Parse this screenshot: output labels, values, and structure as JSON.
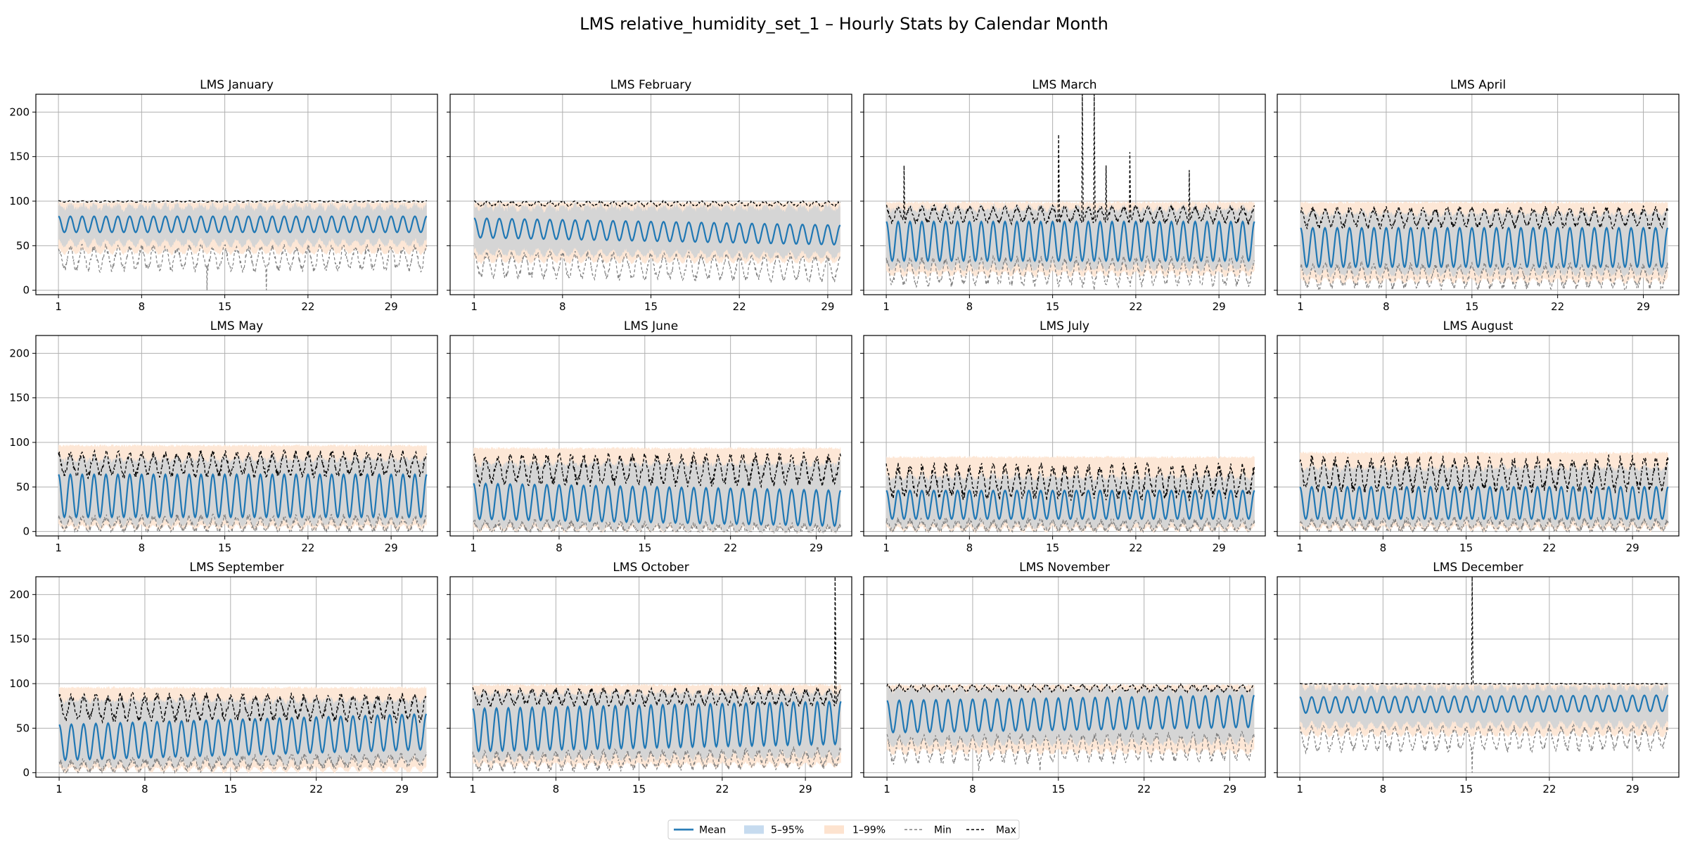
{
  "chart_data": {
    "type": "line",
    "title": "LMS relative_humidity_set_1 – Hourly Stats by Calendar Month",
    "xlabel": "",
    "ylabel": "",
    "ylim": [
      -5,
      220
    ],
    "yticks": [
      0,
      50,
      100,
      150,
      200
    ],
    "xticks": [
      1,
      8,
      15,
      22,
      29
    ],
    "grid": true,
    "legend": {
      "placement": "bottom-center",
      "entries": [
        {
          "label": "Mean",
          "kind": "line",
          "color": "#1f77b4"
        },
        {
          "label": "5–95%",
          "kind": "band",
          "color": "#c6dbef"
        },
        {
          "label": "1–99%",
          "kind": "band",
          "color": "#fde3cf"
        },
        {
          "label": "Min",
          "kind": "dash",
          "color": "#808080"
        },
        {
          "label": "Max",
          "kind": "dash",
          "color": "#000000"
        }
      ]
    },
    "colors": {
      "mean": "#1f77b4",
      "band_5_95": "#d5d5d5",
      "band_1_99": "#fde7d6",
      "min": "#808080",
      "max": "#000000",
      "grid": "#b0b0b0"
    },
    "panels": [
      {
        "title": "LMS January",
        "days": 31,
        "mean": {
          "base": 74,
          "amp": 9,
          "drift": 0
        },
        "p5_95": [
          55,
          97
        ],
        "p1_99": [
          45,
          100
        ],
        "min": {
          "base": 40,
          "amp": 12
        },
        "max": {
          "base": 100,
          "amp": 1
        },
        "spikes": [
          {
            "day": 13,
            "series": "min",
            "value": 0
          },
          {
            "day": 18,
            "series": "min",
            "value": 0
          }
        ]
      },
      {
        "title": "LMS February",
        "days": 29,
        "mean": {
          "base": 70,
          "amp": 11,
          "drift": -8
        },
        "p5_95": [
          45,
          96
        ],
        "p1_99": [
          35,
          100
        ],
        "min": {
          "base": 33,
          "amp": 13
        },
        "max": {
          "base": 98,
          "amp": 3
        },
        "spikes": []
      },
      {
        "title": "LMS March",
        "days": 31,
        "mean": {
          "base": 55,
          "amp": 22,
          "drift": 0
        },
        "p5_95": [
          28,
          95
        ],
        "p1_99": [
          20,
          100
        ],
        "min": {
          "base": 25,
          "amp": 14
        },
        "max": {
          "base": 88,
          "amp": 10
        },
        "spikes": [
          {
            "day": 2,
            "series": "max",
            "value": 140
          },
          {
            "day": 15,
            "series": "max",
            "value": 175
          },
          {
            "day": 17,
            "series": "max",
            "value": 220
          },
          {
            "day": 18,
            "series": "max",
            "value": 220
          },
          {
            "day": 19,
            "series": "max",
            "value": 140
          },
          {
            "day": 21,
            "series": "max",
            "value": 155
          },
          {
            "day": 26,
            "series": "max",
            "value": 135
          },
          {
            "day": 18,
            "series": "min",
            "value": 0
          }
        ]
      },
      {
        "title": "LMS April",
        "days": 30,
        "mean": {
          "base": 48,
          "amp": 22,
          "drift": 0
        },
        "p5_95": [
          22,
          90
        ],
        "p1_99": [
          12,
          100
        ],
        "min": {
          "base": 20,
          "amp": 12
        },
        "max": {
          "base": 85,
          "amp": 12
        },
        "spikes": [
          {
            "day": 15,
            "series": "min",
            "value": 0
          }
        ]
      },
      {
        "title": "LMS May",
        "days": 31,
        "mean": {
          "base": 40,
          "amp": 24,
          "drift": 0
        },
        "p5_95": [
          12,
          85
        ],
        "p1_99": [
          6,
          98
        ],
        "min": {
          "base": 12,
          "amp": 8
        },
        "max": {
          "base": 80,
          "amp": 15
        },
        "spikes": []
      },
      {
        "title": "LMS June",
        "days": 30,
        "mean": {
          "base": 34,
          "amp": 20,
          "drift": -8
        },
        "p5_95": [
          8,
          80
        ],
        "p1_99": [
          4,
          95
        ],
        "min": {
          "base": 9,
          "amp": 6
        },
        "max": {
          "base": 75,
          "amp": 18
        },
        "spikes": []
      },
      {
        "title": "LMS July",
        "days": 31,
        "mean": {
          "base": 30,
          "amp": 16,
          "drift": 0
        },
        "p5_95": [
          8,
          65
        ],
        "p1_99": [
          4,
          85
        ],
        "min": {
          "base": 10,
          "amp": 6
        },
        "max": {
          "base": 62,
          "amp": 20
        },
        "spikes": []
      },
      {
        "title": "LMS August",
        "days": 31,
        "mean": {
          "base": 32,
          "amp": 18,
          "drift": 0
        },
        "p5_95": [
          10,
          75
        ],
        "p1_99": [
          5,
          90
        ],
        "min": {
          "base": 11,
          "amp": 6
        },
        "max": {
          "base": 70,
          "amp": 20
        },
        "spikes": []
      },
      {
        "title": "LMS September",
        "days": 30,
        "mean": {
          "base": 34,
          "amp": 20,
          "drift": 12
        },
        "p5_95": [
          10,
          85
        ],
        "p1_99": [
          5,
          97
        ],
        "min": {
          "base": 11,
          "amp": 6
        },
        "max": {
          "base": 78,
          "amp": 16
        },
        "spikes": []
      },
      {
        "title": "LMS October",
        "days": 31,
        "mean": {
          "base": 48,
          "amp": 24,
          "drift": 8
        },
        "p5_95": [
          18,
          93
        ],
        "p1_99": [
          10,
          100
        ],
        "min": {
          "base": 16,
          "amp": 9
        },
        "max": {
          "base": 88,
          "amp": 10
        },
        "spikes": [
          {
            "day": 31,
            "series": "max",
            "value": 220
          }
        ]
      },
      {
        "title": "LMS November",
        "days": 30,
        "mean": {
          "base": 63,
          "amp": 18,
          "drift": 6
        },
        "p5_95": [
          35,
          97
        ],
        "p1_99": [
          25,
          100
        ],
        "min": {
          "base": 30,
          "amp": 14
        },
        "max": {
          "base": 96,
          "amp": 4
        },
        "spikes": [
          {
            "day": 8,
            "series": "min",
            "value": 2
          },
          {
            "day": 13,
            "series": "min",
            "value": 2
          }
        ]
      },
      {
        "title": "LMS December",
        "days": 31,
        "mean": {
          "base": 76,
          "amp": 9,
          "drift": 2
        },
        "p5_95": [
          55,
          99
        ],
        "p1_99": [
          45,
          100
        ],
        "min": {
          "base": 42,
          "amp": 12
        },
        "max": {
          "base": 100,
          "amp": 0.5
        },
        "spikes": [
          {
            "day": 15,
            "series": "max",
            "value": 220
          },
          {
            "day": 15,
            "series": "min",
            "value": 0
          }
        ]
      }
    ]
  }
}
